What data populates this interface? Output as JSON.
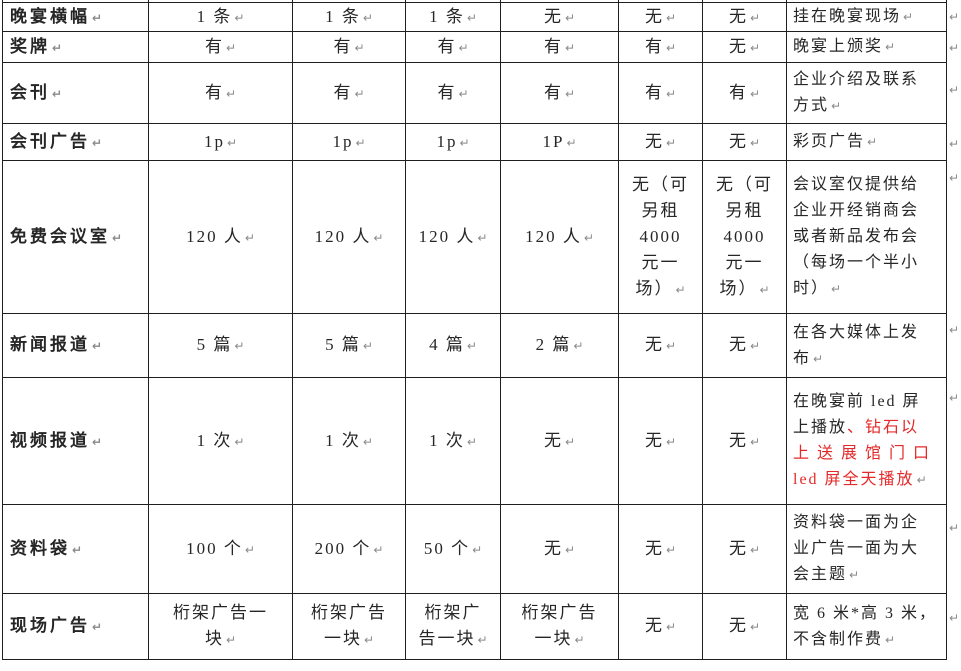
{
  "marks": {
    "end_of_cell": "↵",
    "end_of_row": "↵"
  },
  "colors": {
    "text": "#262626",
    "red_text": "#e52929",
    "border": "#1f1f1f",
    "mark": "#8a8a8a"
  },
  "table": {
    "rows": [
      {
        "label": "晚宴横幅",
        "values": [
          "1 条",
          "1 条",
          "1 条",
          "无",
          "无",
          "无"
        ],
        "desc": "挂在晚宴现场"
      },
      {
        "label": "奖牌",
        "values": [
          "有",
          "有",
          "有",
          "有",
          "有",
          "无"
        ],
        "desc": "晚宴上颁奖"
      },
      {
        "label": "会刊",
        "values": [
          "有",
          "有",
          "有",
          "有",
          "有",
          "有"
        ],
        "desc": "企业介绍及联系\n方式"
      },
      {
        "label": "会刊广告",
        "values": [
          "1p",
          "1p",
          "1p",
          "1P",
          "无",
          "无"
        ],
        "desc": "彩页广告"
      },
      {
        "label": "免费会议室",
        "values": [
          "120 人",
          "120 人",
          "120 人",
          "120 人",
          "无（可\n另租\n4000\n元一\n场）",
          "无（可\n另租\n4000\n元一\n场）"
        ],
        "desc": "会议室仅提供给\n企业开经销商会\n或者新品发布会\n（每场一个半小\n时）"
      },
      {
        "label": "新闻报道",
        "values": [
          "5 篇",
          "5 篇",
          "4 篇",
          "2 篇",
          "无",
          "无"
        ],
        "desc": "在各大媒体上发\n布"
      },
      {
        "label": "视频报道",
        "values": [
          "1 次",
          "1 次",
          "1 次",
          "无",
          "无",
          "无"
        ],
        "desc": "在晚宴前 led 屏\n上播放",
        "desc_red": "、钻石以\n上 送 展 馆 门 口\nled 屏全天播放"
      },
      {
        "label": "资料袋",
        "values": [
          "100 个",
          "200 个",
          "50 个",
          "无",
          "无",
          "无"
        ],
        "desc": "资料袋一面为企\n业广告一面为大\n会主题"
      },
      {
        "label": "现场广告",
        "values": [
          "桁架广告一\n块",
          "桁架广告\n一块",
          "桁架广\n告一块",
          "桁架广告\n一块",
          "无",
          "无"
        ],
        "desc": "宽 6 米*高 3 米，\n不含制作费"
      }
    ]
  }
}
